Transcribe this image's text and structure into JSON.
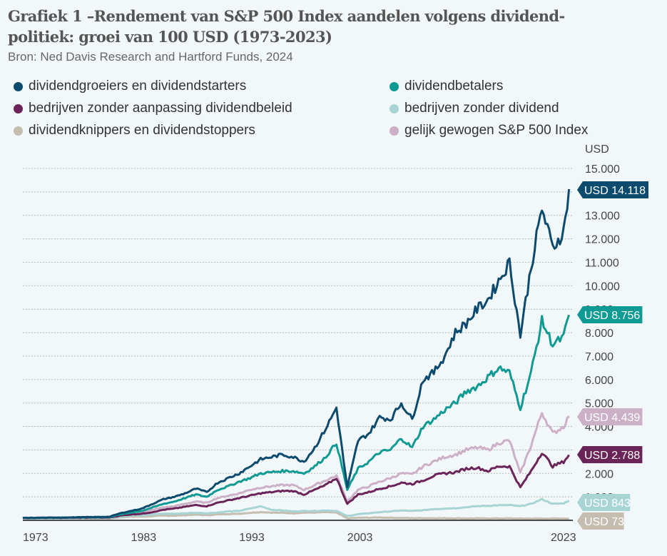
{
  "title": "Grafiek 1 –Rendement van S&P 500 Index aandelen volgens dividend-politiek: groei van 100 USD (1973-2023)",
  "title_line1": "Grafiek 1 –Rendement van S&P 500 Index aandelen volgens dividend-",
  "title_line2": "politiek: groei van 100 USD (1973-2023)",
  "subtitle": "Bron: Ned Davis Research and Hartford Funds, 2024",
  "chart_data": {
    "type": "line",
    "title": "Grafiek 1 –Rendement van S&P 500 Index aandelen volgens dividendpolitiek: groei van 100 USD (1973-2023)",
    "xlabel": "",
    "ylabel": "USD",
    "xlim": [
      1973,
      2024
    ],
    "ylim": [
      0,
      15000
    ],
    "x_ticks": [
      "1973",
      "1983",
      "1993",
      "2003",
      "2023"
    ],
    "x_tick_values": [
      1973,
      1983,
      1993,
      2003,
      2023
    ],
    "y_ticks": [
      "1.000",
      "2.000",
      "3.000",
      "4.000",
      "5.000",
      "6.000",
      "7.000",
      "8.000",
      "9.000",
      "10.000",
      "11.000",
      "12.000",
      "13.000",
      "14.000",
      "15.000"
    ],
    "y_tick_values": [
      1000,
      2000,
      3000,
      4000,
      5000,
      6000,
      7000,
      8000,
      9000,
      10000,
      11000,
      12000,
      13000,
      14000,
      15000
    ],
    "grid": true,
    "legend_position": "top",
    "x": [
      1973,
      1975,
      1977,
      1979,
      1981,
      1982,
      1983,
      1984,
      1985,
      1986,
      1987,
      1988,
      1989,
      1990,
      1991,
      1992,
      1993,
      1994,
      1995,
      1996,
      1997,
      1998,
      1999,
      2000,
      2001,
      2002,
      2003,
      2004,
      2005,
      2006,
      2007,
      2008,
      2009,
      2010,
      2011,
      2012,
      2013,
      2014,
      2015,
      2016,
      2017,
      2018,
      2019,
      2020,
      2021,
      2022,
      2023,
      2023.5
    ],
    "series": [
      {
        "name": "dividendgroeiers en dividendstarters",
        "color": "#0d4b6e",
        "end_label": "USD 14.118",
        "values": [
          100,
          110,
          120,
          135,
          150,
          300,
          400,
          500,
          700,
          900,
          1000,
          1150,
          1350,
          1200,
          1600,
          1800,
          2000,
          2300,
          2600,
          2700,
          2800,
          2700,
          2500,
          3100,
          3900,
          4800,
          1400,
          3400,
          3700,
          4400,
          4300,
          5000,
          4300,
          6000,
          6300,
          7000,
          8000,
          8400,
          9000,
          9400,
          10200,
          11000,
          7900,
          10800,
          13300,
          11600,
          12300,
          14118
        ]
      },
      {
        "name": "dividendbetalers",
        "color": "#0f9a94",
        "end_label": "USD 8.756",
        "values": [
          100,
          110,
          120,
          130,
          140,
          250,
          330,
          400,
          550,
          700,
          800,
          950,
          1100,
          1000,
          1300,
          1450,
          1650,
          1800,
          2000,
          2050,
          2100,
          2100,
          2000,
          2300,
          2700,
          3300,
          1300,
          2200,
          2500,
          2900,
          3000,
          3500,
          3100,
          4000,
          4300,
          4700,
          5000,
          5500,
          5700,
          6100,
          6500,
          6300,
          4800,
          6300,
          8500,
          7500,
          7800,
          8756
        ]
      },
      {
        "name": "bedrijven zonder aanpassing dividendbeleid",
        "color": "#6a2458",
        "end_label": "USD 2.788",
        "values": [
          100,
          105,
          110,
          115,
          120,
          200,
          250,
          280,
          350,
          450,
          500,
          580,
          650,
          600,
          750,
          850,
          950,
          1050,
          1150,
          1200,
          1250,
          1250,
          1100,
          1300,
          1500,
          1800,
          700,
          1100,
          1200,
          1350,
          1450,
          1600,
          1550,
          1700,
          1900,
          2000,
          2050,
          2200,
          2250,
          2100,
          2300,
          2300,
          1400,
          2100,
          2900,
          2300,
          2500,
          2788
        ]
      },
      {
        "name": "bedrijven zonder dividend",
        "color": "#a8d5d4",
        "end_label": "USD 843",
        "values": [
          100,
          100,
          100,
          100,
          100,
          160,
          200,
          220,
          250,
          280,
          280,
          300,
          320,
          300,
          330,
          380,
          400,
          500,
          600,
          450,
          420,
          380,
          400,
          400,
          420,
          400,
          180,
          260,
          300,
          350,
          380,
          420,
          400,
          430,
          480,
          500,
          520,
          560,
          600,
          620,
          640,
          650,
          600,
          700,
          900,
          700,
          720,
          843
        ]
      },
      {
        "name": "dividendknippers en dividendstoppers",
        "color": "#c4bdb0",
        "end_label": "USD 73",
        "values": [
          100,
          95,
          90,
          85,
          80,
          130,
          150,
          160,
          180,
          200,
          200,
          220,
          240,
          220,
          250,
          270,
          280,
          320,
          350,
          330,
          320,
          300,
          330,
          330,
          350,
          330,
          80,
          110,
          110,
          120,
          110,
          100,
          90,
          90,
          90,
          85,
          85,
          80,
          80,
          80,
          80,
          78,
          75,
          75,
          75,
          73,
          73,
          73
        ]
      },
      {
        "name": "gelijk gewogen S&P 500 Index",
        "color": "#cbb0c6",
        "end_label": "USD 4.439",
        "values": [
          100,
          110,
          115,
          125,
          135,
          230,
          300,
          350,
          450,
          550,
          600,
          700,
          800,
          750,
          950,
          1050,
          1150,
          1300,
          1400,
          1450,
          1500,
          1500,
          1300,
          1500,
          1700,
          1900,
          800,
          1300,
          1450,
          1650,
          1800,
          2000,
          1950,
          2300,
          2500,
          2700,
          2800,
          3000,
          3100,
          3000,
          3300,
          3400,
          2000,
          3200,
          4600,
          3700,
          4000,
          4439
        ]
      }
    ]
  },
  "legend": [
    {
      "label": "dividendgroeiers en dividendstarters",
      "color": "#0d4b6e"
    },
    {
      "label": "dividendbetalers",
      "color": "#0f9a94"
    },
    {
      "label": "bedrijven zonder aanpassing dividendbeleid",
      "color": "#6a2458"
    },
    {
      "label": "bedrijven zonder dividend",
      "color": "#a8d5d4"
    },
    {
      "label": "dividendknippers en dividendstoppers",
      "color": "#c4bdb0"
    },
    {
      "label": "gelijk gewogen S&P 500 Index",
      "color": "#cbb0c6"
    }
  ]
}
